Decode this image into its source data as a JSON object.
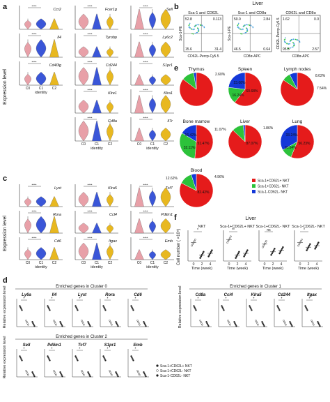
{
  "panels": {
    "a": {
      "label": "a",
      "ylabel": "Expression level",
      "xlabel": "identity",
      "groups": [
        "C0",
        "C1",
        "C2"
      ],
      "genes_col1": [
        "Ccr2",
        "Il4",
        "Cd40lg"
      ],
      "genes_col2": [
        "Fcer1g",
        "Tyrobp",
        "Cd244",
        "Klre1",
        "Cd8a"
      ],
      "genes_col3": [
        "Sell",
        "Ly6c2",
        "S1pr1",
        "Klra1",
        "Il7r"
      ],
      "sig": "****"
    },
    "b": {
      "label": "b",
      "title": "Liver",
      "plot_titles": [
        "Sca-1 and CD62L",
        "Sca-1 and CD8α",
        "CD62L and CD8α"
      ],
      "xaxes": [
        "CD62L-Percp-Cy5.5",
        "CD8α-APC",
        "CD8α-APC"
      ],
      "yaxes": [
        "Sca-1-PE",
        "Sca-1-PE",
        "CD62L-Percp-Cy5.5"
      ],
      "quadrants": [
        [
          "52.8",
          "0.113",
          "15.6",
          "31.4"
        ],
        [
          "50.0",
          "2.84",
          "46.5",
          "0.64"
        ],
        [
          "1.62",
          "0.0",
          "95.8",
          "2.57"
        ]
      ]
    },
    "e": {
      "label": "e",
      "pies": [
        {
          "name": "Thymus",
          "callout": "2.60%",
          "red": 0,
          "green": 0,
          "blue": 0
        },
        {
          "name": "Spleen",
          "red": 60.68,
          "green": 16.24,
          "blue": 23.08,
          "l_red": "60.68%",
          "l_green": "16.24%",
          "l_blue": "23.08%"
        },
        {
          "name": "Lymph nodes",
          "callout1": "8.02%",
          "callout2": "7.54%"
        },
        {
          "name": "Bone marrow",
          "red": 51.47,
          "green": 32.11,
          "blue": 16.42,
          "l_red": "51.47%",
          "l_green": "32.11%",
          "l_blue": "16.42%"
        },
        {
          "name": "Liver",
          "callout1": "1.86%",
          "callout2": "11.07%",
          "l_red": "87.07%"
        },
        {
          "name": "Lung",
          "red": 56.23,
          "green": 10.54,
          "blue": 33.24,
          "l_red": "56.23%",
          "l_green": "10.54%",
          "l_blue": "33.24%"
        },
        {
          "name": "Blood",
          "callout1": "4.96%",
          "callout2": "12.62%",
          "l_red": "82.42%"
        }
      ],
      "legend": [
        "Sca-1+CD62L+ NKT",
        "Sca-1+CD62L- NKT",
        "Sca-1-CD62L- NKT"
      ]
    },
    "c": {
      "label": "c",
      "ylabel": "Expression level",
      "xlabel": "identity",
      "groups": [
        "C0",
        "C1",
        "C2"
      ],
      "genes_col1": [
        "Lyst",
        "Rora",
        "Cd6"
      ],
      "genes_col2": [
        "Klra5",
        "Ccl4",
        "Itgax"
      ],
      "genes_col3": [
        "Tcf7",
        "Pdlim1",
        "Emb"
      ],
      "sig": "****"
    },
    "f": {
      "label": "f",
      "title": "Liver",
      "plots": [
        "NKT",
        "Sca-1+CD62L+ NKT",
        "Sca-1+CD62L- NKT",
        "Sca-1-CD62L- NKT"
      ],
      "ylabel": "Cell number ( ×10⁵)",
      "xlabel": "Time (week)",
      "xticks": [
        "0",
        "2",
        "4"
      ],
      "sig": [
        "*",
        "**",
        "ns"
      ]
    },
    "d": {
      "label": "d",
      "ylabel": "Relative expression level",
      "group0_title": "Enriched genes in Cluster 0",
      "group0_genes": [
        "Ly6a",
        "Il4",
        "Lyst",
        "Rora",
        "Cd6"
      ],
      "group1_title": "Enriched genes in Cluster 1",
      "group1_genes": [
        "Cd8a",
        "Ccl4",
        "Klra5",
        "Cd244",
        "Itgax"
      ],
      "group2_title": "Enriched genes in Cluster 2",
      "group2_genes": [
        "Sell",
        "Pdlim1",
        "Tcf7",
        "S1pr1",
        "Emb"
      ],
      "legend": [
        "Sca-1+CD62L+ NKT",
        "Sca-1+CD62L- NKT",
        "Sca-1-CD62L- NKT"
      ]
    }
  },
  "colors": {
    "pink": "#e8a0a8",
    "blue": "#3a56d8",
    "gold": "#e8b820",
    "red": "#e51b1b",
    "green": "#2cc23a",
    "pieblue": "#1438d8"
  }
}
